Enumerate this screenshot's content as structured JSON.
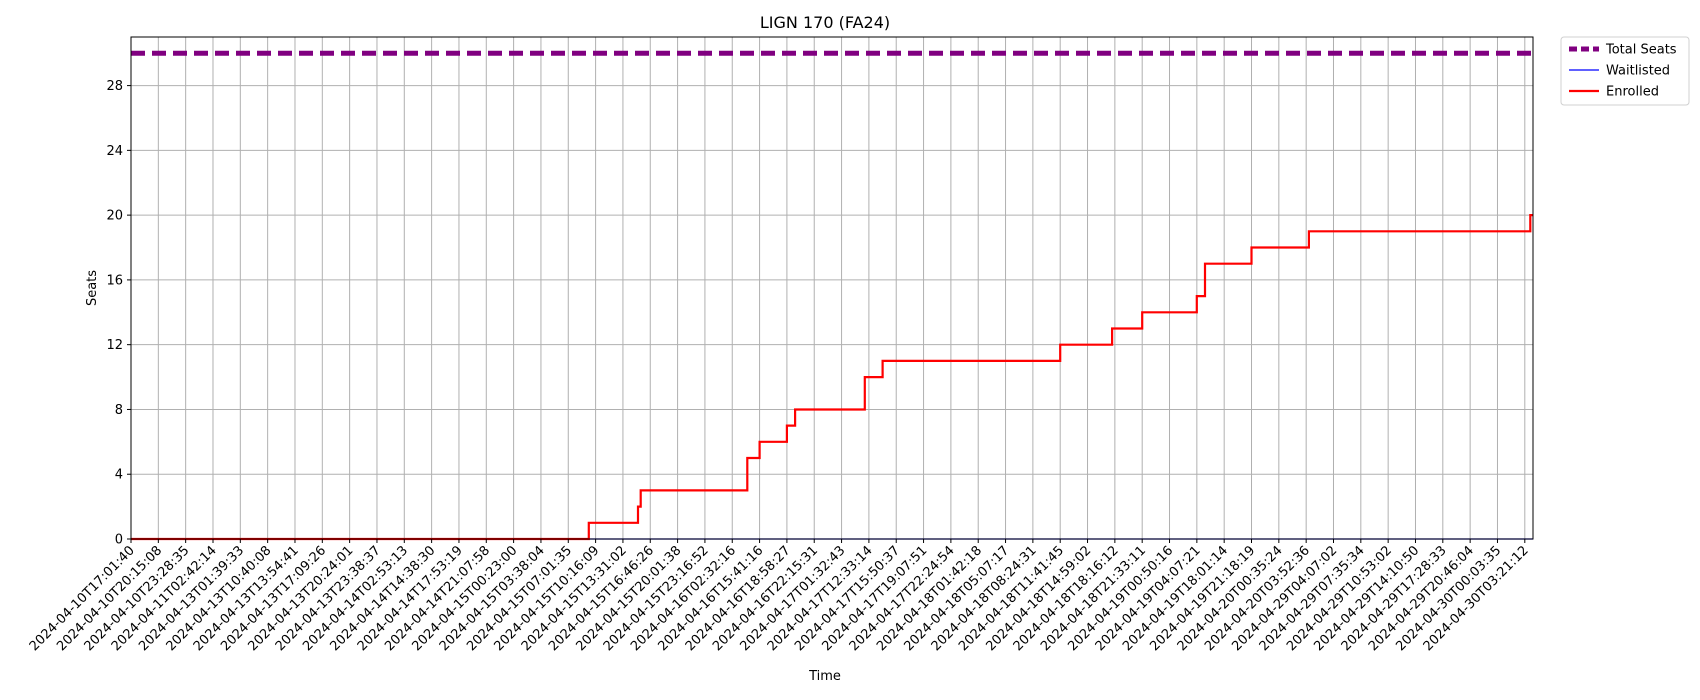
{
  "chart_data": {
    "type": "line",
    "title": "LIGN 170 (FA24)",
    "xlabel": "Time",
    "ylabel": "Seats",
    "ylim": [
      0,
      31
    ],
    "yticks": [
      0,
      4,
      8,
      12,
      16,
      20,
      24,
      28
    ],
    "grid": true,
    "legend_position": "outside-top-right",
    "x_ticks": [
      "2024-04-10T17:01:40",
      "2024-04-10T20:15:08",
      "2024-04-10T23:28:35",
      "2024-04-11T02:42:14",
      "2024-04-13T01:39:33",
      "2024-04-13T10:40:08",
      "2024-04-13T13:54:41",
      "2024-04-13T17:09:26",
      "2024-04-13T20:24:01",
      "2024-04-13T23:38:37",
      "2024-04-14T02:53:13",
      "2024-04-14T14:38:30",
      "2024-04-14T17:53:19",
      "2024-04-14T21:07:58",
      "2024-04-15T00:23:00",
      "2024-04-15T03:38:04",
      "2024-04-15T07:01:35",
      "2024-04-15T10:16:09",
      "2024-04-15T13:31:02",
      "2024-04-15T16:46:26",
      "2024-04-15T20:01:38",
      "2024-04-15T23:16:52",
      "2024-04-16T02:32:16",
      "2024-04-16T15:41:16",
      "2024-04-16T18:58:27",
      "2024-04-16T22:15:31",
      "2024-04-17T01:32:43",
      "2024-04-17T12:33:14",
      "2024-04-17T15:50:37",
      "2024-04-17T19:07:51",
      "2024-04-17T22:24:54",
      "2024-04-18T01:42:18",
      "2024-04-18T05:07:17",
      "2024-04-18T08:24:31",
      "2024-04-18T11:41:45",
      "2024-04-18T14:59:02",
      "2024-04-18T18:16:12",
      "2024-04-18T21:33:11",
      "2024-04-19T00:50:16",
      "2024-04-19T04:07:21",
      "2024-04-19T18:01:14",
      "2024-04-19T21:18:19",
      "2024-04-20T00:35:24",
      "2024-04-20T03:52:36",
      "2024-04-29T04:07:02",
      "2024-04-29T07:35:34",
      "2024-04-29T10:53:02",
      "2024-04-29T14:10:50",
      "2024-04-29T17:28:33",
      "2024-04-29T20:46:04",
      "2024-04-30T00:03:35",
      "2024-04-30T03:21:12"
    ],
    "x_range": [
      0,
      51.3
    ],
    "series": [
      {
        "name": "Total Seats",
        "color": "#800080",
        "style": "dashed",
        "points": [
          [
            0,
            30
          ],
          [
            51.3,
            30
          ]
        ]
      },
      {
        "name": "Waitlisted",
        "color": "#0000ff",
        "style": "solid",
        "points": [
          [
            0,
            0
          ],
          [
            51.3,
            0
          ]
        ]
      },
      {
        "name": "Enrolled",
        "color": "#ff0000",
        "style": "step",
        "points": [
          [
            0,
            0
          ],
          [
            16.75,
            0
          ],
          [
            16.75,
            1
          ],
          [
            18.55,
            1
          ],
          [
            18.55,
            2
          ],
          [
            18.65,
            2
          ],
          [
            18.65,
            3
          ],
          [
            22.55,
            3
          ],
          [
            22.55,
            5
          ],
          [
            23.0,
            5
          ],
          [
            23.0,
            6
          ],
          [
            24.0,
            6
          ],
          [
            24.0,
            7
          ],
          [
            24.3,
            7
          ],
          [
            24.3,
            8
          ],
          [
            26.85,
            8
          ],
          [
            26.85,
            10
          ],
          [
            27.5,
            10
          ],
          [
            27.5,
            11
          ],
          [
            34.0,
            11
          ],
          [
            34.0,
            12
          ],
          [
            35.9,
            12
          ],
          [
            35.9,
            13
          ],
          [
            37.0,
            13
          ],
          [
            37.0,
            14
          ],
          [
            39.0,
            14
          ],
          [
            39.0,
            15
          ],
          [
            39.3,
            15
          ],
          [
            39.3,
            17
          ],
          [
            41.0,
            17
          ],
          [
            41.0,
            18
          ],
          [
            43.1,
            18
          ],
          [
            43.1,
            19
          ],
          [
            51.2,
            19
          ],
          [
            51.2,
            20
          ],
          [
            51.3,
            20
          ]
        ]
      }
    ]
  }
}
